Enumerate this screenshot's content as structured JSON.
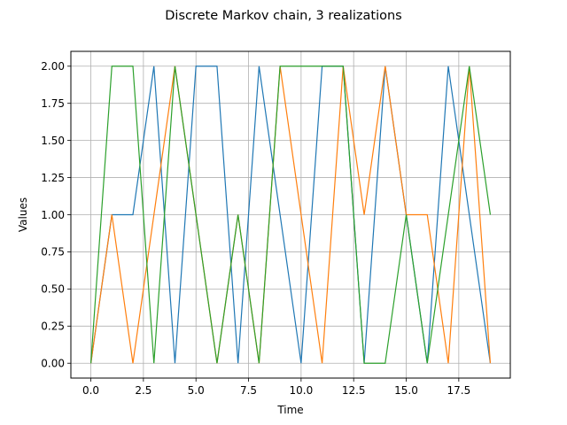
{
  "chart_data": {
    "type": "line",
    "title": "Discrete Markov chain, 3 realizations",
    "xlabel": "Time",
    "ylabel": "Values",
    "xlim": [
      -0.95,
      19.95
    ],
    "ylim": [
      -0.1,
      2.1
    ],
    "grid": true,
    "x": [
      0,
      1,
      2,
      3,
      4,
      5,
      6,
      7,
      8,
      9,
      10,
      11,
      12,
      13,
      14,
      15,
      16,
      17,
      18,
      19
    ],
    "x_ticks": [
      0.0,
      2.5,
      5.0,
      7.5,
      10.0,
      12.5,
      15.0,
      17.5
    ],
    "x_tick_labels": [
      "0.0",
      "2.5",
      "5.0",
      "7.5",
      "10.0",
      "12.5",
      "15.0",
      "17.5"
    ],
    "y_ticks": [
      0.0,
      0.25,
      0.5,
      0.75,
      1.0,
      1.25,
      1.5,
      1.75,
      2.0
    ],
    "y_tick_labels": [
      "0.00",
      "0.25",
      "0.50",
      "0.75",
      "1.00",
      "1.25",
      "1.50",
      "1.75",
      "2.00"
    ],
    "series": [
      {
        "color": "#1f77b4",
        "values": [
          0,
          1,
          1,
          2,
          0,
          2,
          2,
          0,
          2,
          1,
          0,
          2,
          2,
          0,
          2,
          1,
          0,
          2,
          1,
          0
        ]
      },
      {
        "color": "#ff7f0e",
        "values": [
          0,
          1,
          0,
          1,
          2,
          1,
          0,
          1,
          0,
          2,
          1,
          0,
          2,
          1,
          2,
          1,
          1,
          0,
          2,
          0
        ]
      },
      {
        "color": "#2ca02c",
        "values": [
          0,
          2,
          2,
          0,
          2,
          1,
          0,
          1,
          0,
          2,
          2,
          2,
          2,
          0,
          0,
          1,
          0,
          1,
          2,
          1
        ]
      }
    ]
  }
}
